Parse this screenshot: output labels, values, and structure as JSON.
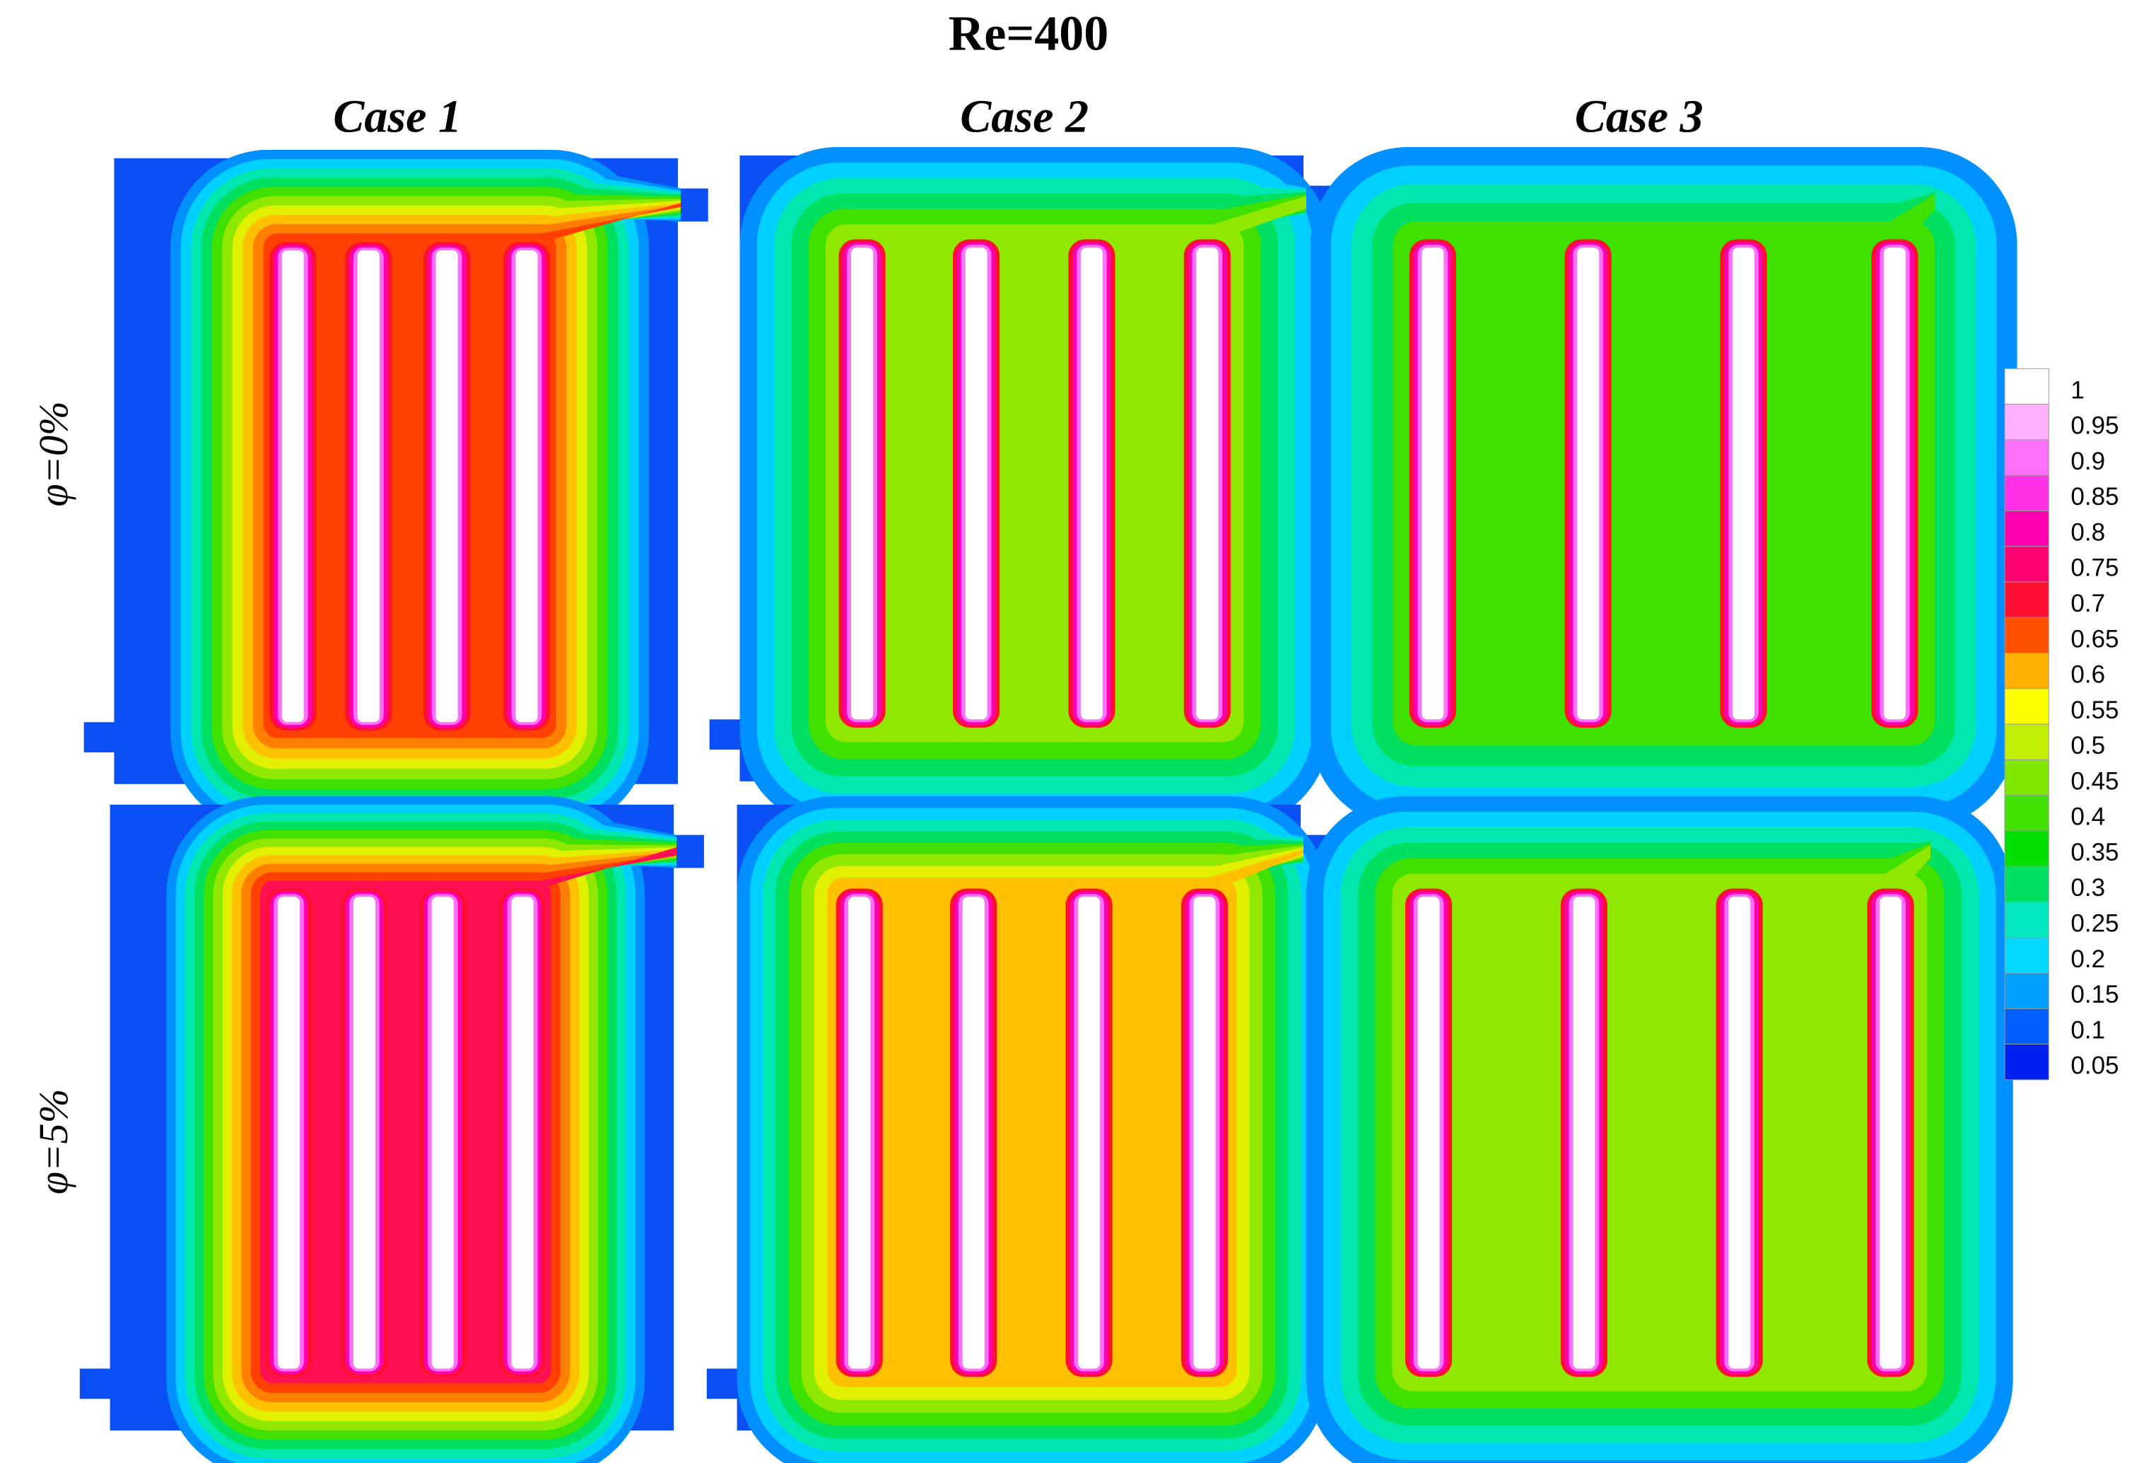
{
  "chart_data": {
    "type": "contour",
    "title": "Re=400",
    "columns": [
      "Case 1",
      "Case 2",
      "Case 3"
    ],
    "rows": [
      "φ=0%",
      "φ=5%"
    ],
    "colorbar": {
      "levels": [
        1,
        0.95,
        0.9,
        0.85,
        0.8,
        0.75,
        0.7,
        0.65,
        0.6,
        0.55,
        0.5,
        0.45,
        0.4,
        0.35,
        0.3,
        0.25,
        0.2,
        0.15,
        0.1,
        0.05
      ],
      "colors": [
        "#ffffff",
        "#ffb0ff",
        "#ff70f8",
        "#ff30e8",
        "#ff00b0",
        "#ff0070",
        "#ff1030",
        "#ff5000",
        "#ffb000",
        "#ffff00",
        "#c0f000",
        "#80e800",
        "#40e000",
        "#00e000",
        "#00e060",
        "#00e8c0",
        "#00d8ff",
        "#00a0ff",
        "#0060ff",
        "#0020f0"
      ]
    }
  }
}
